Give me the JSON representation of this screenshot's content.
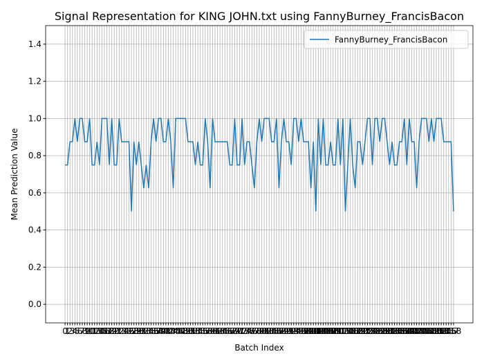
{
  "chart_data": {
    "type": "line",
    "title": "Signal Representation for KING JOHN.txt using FannyBurney_FrancisBacon",
    "xlabel": "Batch Index",
    "ylabel": "Mean Prediction Value",
    "x": [
      0,
      1,
      2,
      3,
      4,
      5,
      6,
      7,
      8,
      9,
      10,
      11,
      12,
      13,
      14,
      15,
      16,
      17,
      18,
      19,
      20,
      21,
      22,
      23,
      24,
      25,
      26,
      27,
      28,
      29,
      30,
      31,
      32,
      33,
      34,
      35,
      36,
      37,
      38,
      39,
      40,
      41,
      42,
      43,
      44,
      45,
      46,
      47,
      48,
      49,
      50,
      51,
      52,
      53,
      54,
      55,
      56,
      57,
      58,
      59,
      60,
      61,
      62,
      63,
      64,
      65,
      66,
      67,
      68,
      69,
      70,
      71,
      72,
      73,
      74,
      75,
      76,
      77,
      78,
      79,
      80,
      81,
      82,
      83,
      84,
      85,
      86,
      87,
      88,
      89,
      90,
      91,
      92,
      93,
      94,
      95,
      96,
      97,
      98,
      99,
      100,
      101,
      102,
      103,
      104,
      105,
      106,
      107,
      108,
      109,
      110,
      111,
      112,
      113,
      114,
      115,
      116,
      117,
      118,
      119,
      120,
      121,
      122,
      123,
      124,
      125,
      126,
      127,
      128,
      129,
      130,
      131,
      132,
      133,
      134,
      135,
      136,
      137,
      138,
      139,
      140,
      141,
      142,
      143,
      144,
      145,
      146,
      147,
      148,
      149,
      150,
      151,
      152,
      153,
      154,
      155,
      156,
      157,
      158
    ],
    "series": [
      {
        "name": "FannyBurney_FrancisBacon",
        "color": "#1f77b4",
        "values": [
          0.75,
          0.75,
          0.875,
          0.875,
          1,
          0.875,
          1,
          1,
          0.875,
          0.875,
          1,
          0.75,
          0.75,
          0.875,
          0.75,
          1,
          1,
          1,
          0.75,
          1,
          0.75,
          0.75,
          1,
          0.875,
          0.875,
          0.875,
          0.875,
          0.5,
          0.875,
          0.75,
          0.875,
          0.75,
          0.625,
          0.75,
          0.625,
          0.875,
          1,
          0.875,
          1,
          1,
          0.875,
          0.875,
          1,
          0.875,
          0.625,
          1,
          1,
          1,
          1,
          1,
          0.875,
          0.875,
          0.875,
          0.75,
          0.875,
          0.75,
          0.75,
          1,
          0.875,
          0.625,
          1,
          0.875,
          0.875,
          0.875,
          0.875,
          0.875,
          0.875,
          0.75,
          0.75,
          1,
          0.75,
          0.75,
          1,
          0.75,
          0.875,
          0.875,
          0.75,
          0.625,
          0.875,
          1,
          0.875,
          1,
          1,
          1,
          0.875,
          0.875,
          1,
          0.625,
          0.875,
          1,
          0.875,
          0.875,
          0.75,
          1,
          1,
          0.875,
          1,
          0.875,
          0.875,
          0.875,
          0.625,
          0.875,
          0.5,
          1,
          0.75,
          1,
          0.75,
          0.75,
          0.875,
          0.75,
          0.75,
          1,
          0.75,
          1,
          0.5,
          0.75,
          1,
          0.75,
          0.625,
          0.875,
          0.875,
          0.75,
          0.875,
          1,
          1,
          0.75,
          1,
          1,
          0.875,
          1,
          1,
          0.875,
          0.75,
          0.875,
          0.75,
          0.75,
          0.875,
          0.875,
          1,
          0.75,
          1,
          0.875,
          0.875,
          0.625,
          0.875,
          1,
          1,
          1,
          0.875,
          1,
          0.875,
          1,
          1,
          1,
          0.875,
          0.875,
          0.875,
          0.875,
          0.5
        ]
      }
    ],
    "xlim": [
      -7.9,
      165.9
    ],
    "ylim": [
      -0.1,
      1.5
    ],
    "yticks": [
      {
        "value": 0,
        "label": "0.0"
      },
      {
        "value": 0.2,
        "label": "0.2"
      },
      {
        "value": 0.4,
        "label": "0.4"
      },
      {
        "value": 0.6,
        "label": "0.6"
      },
      {
        "value": 0.8,
        "label": "0.8"
      },
      {
        "value": 1,
        "label": "1.0"
      },
      {
        "value": 1.2,
        "label": "1.2"
      },
      {
        "value": 1.4,
        "label": "1.4"
      }
    ],
    "grid": true,
    "legend": "upper right"
  }
}
